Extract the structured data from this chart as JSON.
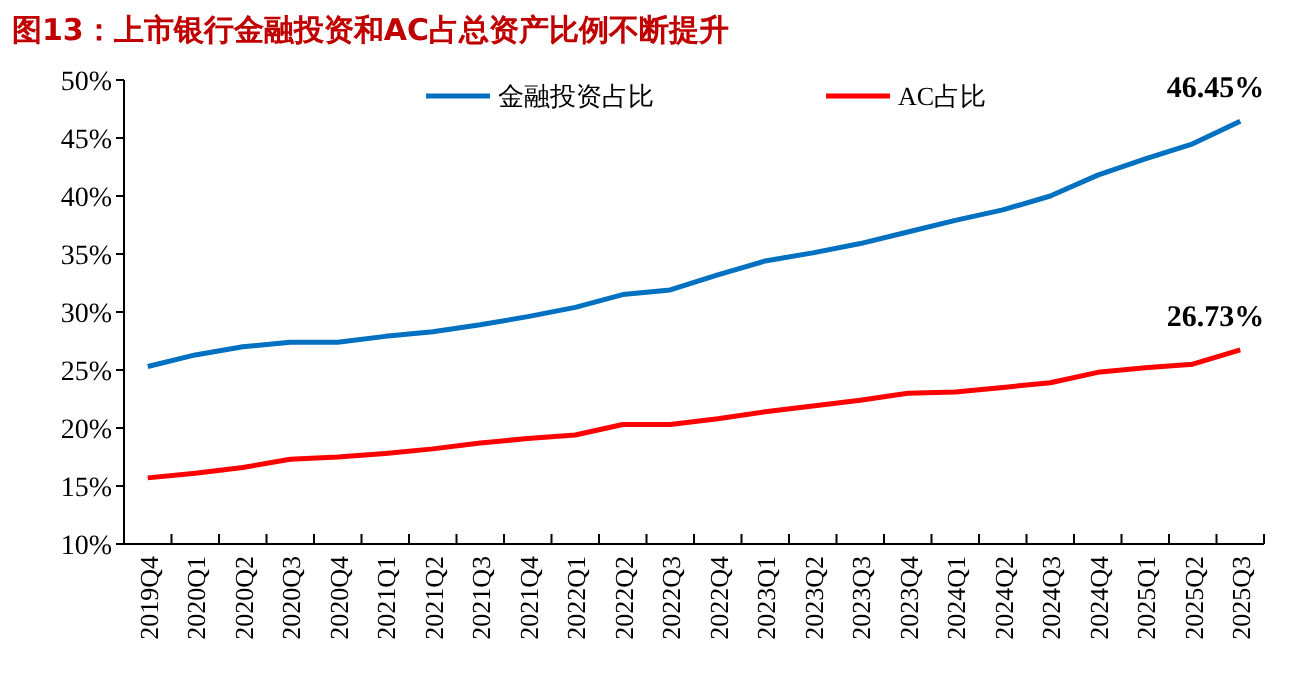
{
  "chart_data": {
    "type": "line",
    "title": "图13：上市银行金融投资和AC占总资产比例不断提升",
    "categories": [
      "2019Q4",
      "2020Q1",
      "2020Q2",
      "2020Q3",
      "2020Q4",
      "2021Q1",
      "2021Q2",
      "2021Q3",
      "2021Q4",
      "2022Q1",
      "2022Q2",
      "2022Q3",
      "2022Q4",
      "2023Q1",
      "2023Q2",
      "2023Q3",
      "2023Q4",
      "2024Q1",
      "2024Q2",
      "2024Q3",
      "2024Q4",
      "2025Q1",
      "2025Q2",
      "2025Q3"
    ],
    "series": [
      {
        "name": "金融投资占比",
        "color": "#0070c0",
        "values": [
          25.3,
          26.3,
          27.0,
          27.4,
          27.4,
          27.9,
          28.3,
          28.9,
          29.6,
          30.4,
          31.5,
          31.9,
          33.2,
          34.4,
          35.1,
          35.9,
          36.9,
          37.9,
          38.8,
          40.0,
          41.8,
          43.2,
          44.5,
          46.45
        ],
        "value_labels": [
          null,
          null,
          null,
          null,
          null,
          null,
          null,
          null,
          null,
          null,
          null,
          null,
          null,
          null,
          null,
          null,
          null,
          null,
          null,
          null,
          null,
          null,
          null,
          "46.45%"
        ]
      },
      {
        "name": "AC占比",
        "color": "#ff0000",
        "values": [
          15.7,
          16.1,
          16.6,
          17.3,
          17.5,
          17.8,
          18.2,
          18.7,
          19.1,
          19.4,
          20.3,
          20.3,
          20.8,
          21.4,
          21.9,
          22.4,
          23.0,
          23.1,
          23.5,
          23.9,
          24.8,
          25.2,
          25.5,
          26.73
        ],
        "value_labels": [
          null,
          null,
          null,
          null,
          null,
          null,
          null,
          null,
          null,
          null,
          null,
          null,
          null,
          null,
          null,
          null,
          null,
          null,
          null,
          null,
          null,
          null,
          null,
          "26.73%"
        ]
      }
    ],
    "ylim": [
      10,
      50
    ],
    "yticks": [
      {
        "value": 10,
        "label": "10%"
      },
      {
        "value": 15,
        "label": "15%"
      },
      {
        "value": 20,
        "label": "20%"
      },
      {
        "value": 25,
        "label": "25%"
      },
      {
        "value": 30,
        "label": "30%"
      },
      {
        "value": 35,
        "label": "35%"
      },
      {
        "value": 40,
        "label": "40%"
      },
      {
        "value": 45,
        "label": "45%"
      },
      {
        "value": 50,
        "label": "50%"
      }
    ],
    "legend": "top",
    "grid": false,
    "marker": "none",
    "line_style": "solid"
  }
}
